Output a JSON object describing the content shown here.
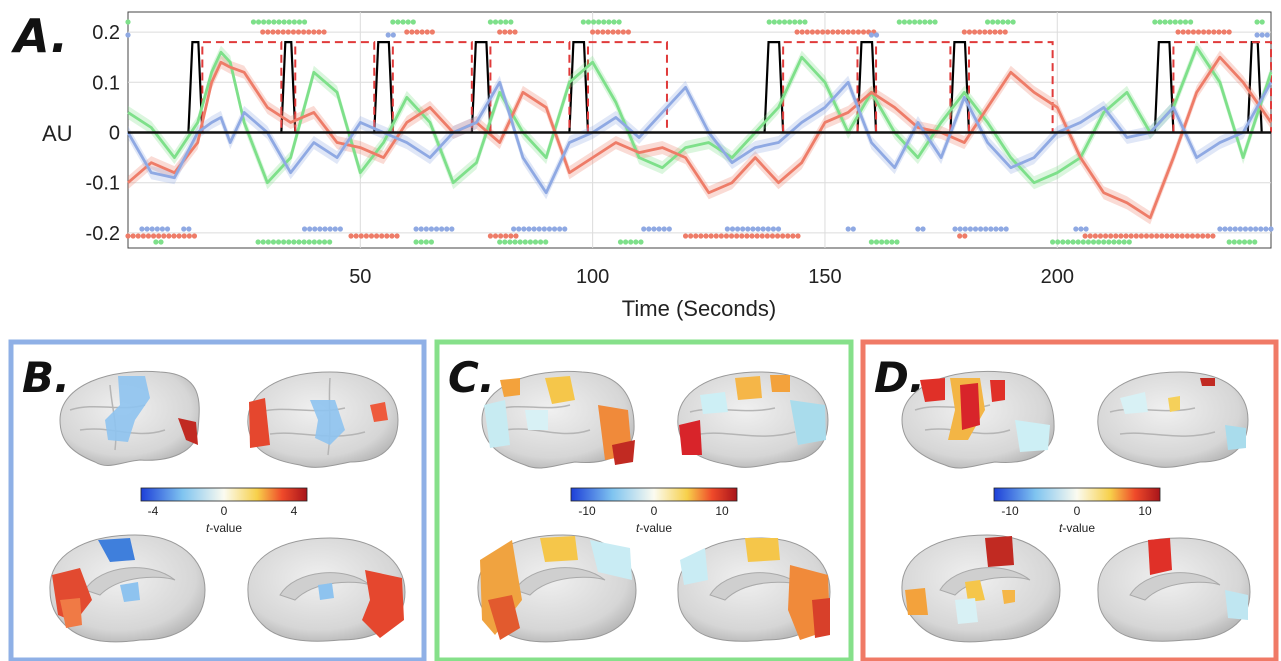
{
  "panels": {
    "a": {
      "letter": "A."
    },
    "b": {
      "letter": "B.",
      "frame_color": "#8fb0e6",
      "colorbar_ticks": [
        "-4",
        "0",
        "4"
      ]
    },
    "c": {
      "letter": "C.",
      "frame_color": "#86e08a",
      "colorbar_ticks": [
        "-10",
        "0",
        "10"
      ]
    },
    "d": {
      "letter": "D.",
      "frame_color": "#f07a66",
      "colorbar_ticks": [
        "-10",
        "0",
        "10"
      ]
    },
    "colorbar_label_prefix": "t",
    "colorbar_label_suffix": "-value"
  },
  "chart_data": {
    "type": "line",
    "xlabel": "Time  (Seconds)",
    "ylabel": "AU",
    "xlim": [
      0,
      246
    ],
    "ylim": [
      -0.23,
      0.24
    ],
    "xticks": [
      50,
      100,
      150,
      200
    ],
    "yticks": [
      0.2,
      0.1,
      0,
      -0.1,
      -0.2
    ],
    "ytick_labels": [
      "0.2",
      "0.1",
      "0",
      "-0.1",
      "-0.2"
    ],
    "grid": true,
    "colors": {
      "green": "#7ee08a",
      "red": "#ee7c68",
      "blue": "#8fa9e3",
      "black": "#000000",
      "dash": "#e03a3a"
    },
    "series": [
      {
        "color": "green",
        "x": [
          0,
          5,
          10,
          15,
          18,
          20,
          22,
          25,
          30,
          35,
          40,
          45,
          50,
          55,
          60,
          65,
          70,
          75,
          80,
          85,
          90,
          95,
          100,
          105,
          110,
          115,
          120,
          125,
          130,
          135,
          140,
          145,
          150,
          155,
          160,
          165,
          170,
          175,
          180,
          185,
          190,
          195,
          200,
          205,
          210,
          215,
          220,
          225,
          230,
          235,
          240,
          246
        ],
        "values": [
          0.04,
          0.01,
          -0.05,
          0.02,
          0.12,
          0.16,
          0.14,
          0.02,
          -0.1,
          -0.05,
          0.12,
          0.08,
          -0.08,
          -0.02,
          0.07,
          0.02,
          -0.1,
          -0.06,
          0.08,
          0.0,
          -0.05,
          0.1,
          0.14,
          0.06,
          -0.05,
          -0.07,
          -0.03,
          -0.02,
          -0.05,
          0.0,
          0.05,
          0.15,
          0.1,
          0.0,
          0.08,
          0.0,
          -0.05,
          0.02,
          0.08,
          0.02,
          -0.05,
          -0.1,
          -0.08,
          -0.05,
          0.04,
          0.08,
          0.0,
          0.05,
          0.17,
          0.1,
          -0.05,
          0.12
        ]
      },
      {
        "color": "red",
        "x": [
          0,
          5,
          10,
          15,
          18,
          20,
          22,
          25,
          30,
          35,
          40,
          45,
          50,
          55,
          60,
          65,
          70,
          75,
          80,
          85,
          90,
          95,
          100,
          105,
          110,
          115,
          120,
          125,
          130,
          135,
          140,
          145,
          150,
          155,
          160,
          165,
          170,
          175,
          180,
          185,
          190,
          195,
          200,
          205,
          210,
          215,
          220,
          225,
          230,
          235,
          240,
          246
        ],
        "values": [
          -0.1,
          -0.06,
          -0.08,
          -0.02,
          0.1,
          0.14,
          0.13,
          0.12,
          0.05,
          0.02,
          0.04,
          -0.02,
          -0.03,
          -0.05,
          0.02,
          0.05,
          0.0,
          0.02,
          -0.02,
          0.08,
          0.05,
          -0.08,
          -0.05,
          -0.02,
          -0.04,
          -0.03,
          -0.05,
          -0.12,
          -0.1,
          -0.05,
          -0.1,
          -0.06,
          0.02,
          0.04,
          0.08,
          0.05,
          0.01,
          0.0,
          -0.02,
          0.05,
          0.12,
          0.08,
          0.05,
          -0.05,
          -0.12,
          -0.14,
          -0.17,
          -0.05,
          0.08,
          0.15,
          0.1,
          0.02
        ]
      },
      {
        "color": "blue",
        "x": [
          0,
          5,
          10,
          15,
          18,
          20,
          22,
          25,
          30,
          35,
          40,
          45,
          50,
          55,
          60,
          65,
          70,
          75,
          80,
          85,
          90,
          95,
          100,
          105,
          110,
          115,
          120,
          125,
          130,
          135,
          140,
          145,
          150,
          155,
          160,
          165,
          170,
          175,
          180,
          185,
          190,
          195,
          200,
          205,
          210,
          215,
          220,
          225,
          230,
          235,
          240,
          246
        ],
        "values": [
          0.0,
          -0.08,
          -0.09,
          0.0,
          0.02,
          0.03,
          -0.02,
          0.04,
          0.0,
          -0.08,
          -0.02,
          -0.05,
          0.02,
          0.0,
          -0.02,
          -0.05,
          0.0,
          0.02,
          0.1,
          -0.05,
          -0.12,
          -0.02,
          0.0,
          0.03,
          -0.01,
          0.04,
          0.09,
          0.0,
          -0.06,
          -0.03,
          -0.02,
          0.02,
          0.05,
          0.1,
          -0.02,
          -0.07,
          0.02,
          -0.05,
          0.07,
          -0.02,
          -0.07,
          -0.05,
          0.0,
          0.02,
          0.05,
          -0.01,
          0.0,
          0.05,
          -0.05,
          -0.02,
          0.0,
          0.1
        ]
      }
    ],
    "block_regressor": [
      [
        13,
        16
      ],
      [
        33,
        36
      ],
      [
        53,
        57
      ],
      [
        74,
        78
      ],
      [
        95,
        99
      ],
      [
        137,
        141
      ],
      [
        157,
        161
      ],
      [
        177,
        181
      ],
      [
        221,
        225
      ],
      [
        241,
        244
      ]
    ],
    "dashed_regressor": [
      [
        16,
        33
      ],
      [
        36,
        53
      ],
      [
        57,
        74
      ],
      [
        78,
        95
      ],
      [
        99,
        116
      ],
      [
        141,
        157
      ],
      [
        161,
        177
      ],
      [
        181,
        199
      ],
      [
        225,
        246
      ]
    ],
    "markers_top": {
      "green": [
        [
          0,
          1
        ],
        [
          27,
          39
        ],
        [
          57,
          62
        ],
        [
          78,
          83
        ],
        [
          98,
          106
        ],
        [
          138,
          146
        ],
        [
          166,
          174
        ],
        [
          185,
          191
        ],
        [
          221,
          229
        ],
        [
          243,
          245
        ]
      ],
      "red": [
        [
          29,
          43
        ],
        [
          60,
          66
        ],
        [
          80,
          84
        ],
        [
          100,
          108
        ],
        [
          144,
          161
        ],
        [
          180,
          189
        ],
        [
          226,
          238
        ]
      ],
      "blue": [
        [
          0,
          1
        ],
        [
          56,
          58
        ],
        [
          160,
          162
        ],
        [
          243,
          246
        ]
      ]
    },
    "markers_bottom": {
      "blue": [
        [
          3,
          9
        ],
        [
          12,
          14
        ],
        [
          38,
          46
        ],
        [
          62,
          70
        ],
        [
          83,
          95
        ],
        [
          111,
          117
        ],
        [
          129,
          141
        ],
        [
          155,
          157
        ],
        [
          170,
          172
        ],
        [
          178,
          190
        ],
        [
          204,
          207
        ],
        [
          235,
          246
        ]
      ],
      "red": [
        [
          0,
          15
        ],
        [
          48,
          58
        ],
        [
          78,
          84
        ],
        [
          120,
          145
        ],
        [
          179,
          181
        ],
        [
          206,
          234
        ]
      ],
      "green": [
        [
          6,
          8
        ],
        [
          28,
          44
        ],
        [
          62,
          66
        ],
        [
          80,
          90
        ],
        [
          106,
          111
        ],
        [
          160,
          166
        ],
        [
          199,
          216
        ],
        [
          237,
          243
        ]
      ]
    }
  }
}
